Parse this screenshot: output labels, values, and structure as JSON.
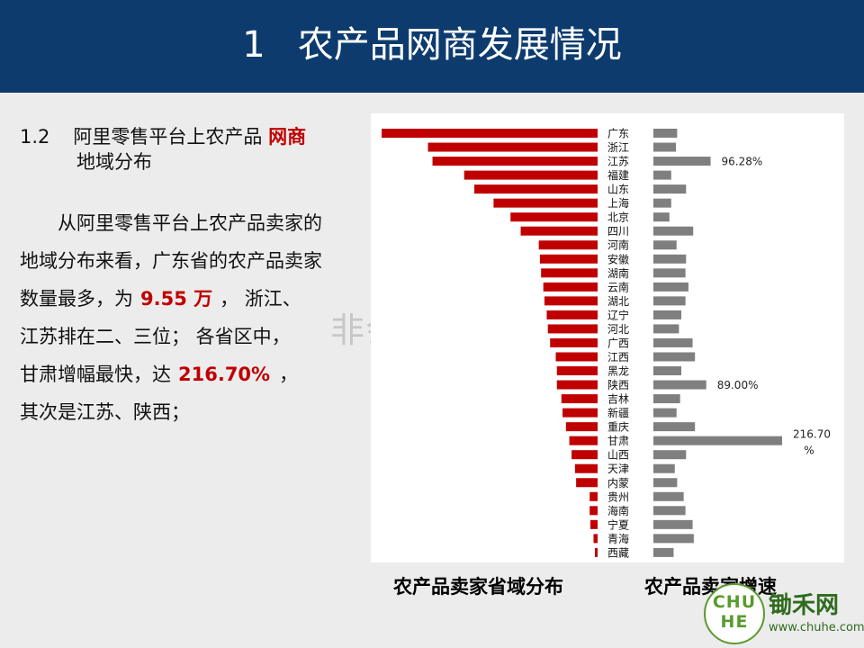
{
  "header": {
    "number": "1",
    "title": "农产品网商发展情况"
  },
  "section": {
    "number": "1.2",
    "title_part1": "阿里零售平台上农产品",
    "title_highlight": "网商",
    "title_line2": "地域分布"
  },
  "body": {
    "line1": "从阿里零售平台上农产品卖家的",
    "line2": "地域分布来看，广东省的农产品卖家",
    "line3_a": "数量最多，为",
    "line3_highlight": "9.55 万",
    "line3_b": "，  浙江、",
    "line4": "江苏排在二、三位；  各省区中，",
    "line5_a": "甘肃增幅最快，达",
    "line5_highlight": "216.70%",
    "line5_b": "，",
    "line6": "其次是江苏、陕西；"
  },
  "watermark": "非会员水印",
  "captions": {
    "left": "农产品卖家省域分布",
    "right": "农产品卖家增速"
  },
  "logo": {
    "badge_line1": "CHU",
    "badge_line2": "HE",
    "name": "锄禾网",
    "url": "www.chuhe.com"
  },
  "colors": {
    "header_bg": "#0d3b6e",
    "seller_bar": "#c00000",
    "growth_bar": "#7f7f7f",
    "accent_text": "#c00000",
    "logo_green": "#2f6b1f"
  },
  "chart_data": {
    "type": "bar",
    "orientation": "horizontal",
    "categories": [
      "广东",
      "浙江",
      "江苏",
      "福建",
      "山东",
      "上海",
      "北京",
      "四川",
      "河南",
      "安徽",
      "湖南",
      "云南",
      "湖北",
      "辽宁",
      "河北",
      "广西",
      "江西",
      "黑龙",
      "陕西",
      "吉林",
      "新疆",
      "重庆",
      "甘肃",
      "山西",
      "天津",
      "内蒙",
      "贵州",
      "海南",
      "宁夏",
      "青海",
      "西藏"
    ],
    "series": [
      {
        "values": [
          9.55,
          7.5,
          7.3,
          5.9,
          5.45,
          4.6,
          3.85,
          3.4,
          2.6,
          2.55,
          2.5,
          2.4,
          2.35,
          2.25,
          2.2,
          2.1,
          1.85,
          1.8,
          1.8,
          1.6,
          1.55,
          1.4,
          1.25,
          1.15,
          1.0,
          0.95,
          0.35,
          0.35,
          0.32,
          0.18,
          0.12
        ],
        "direction": "left"
      },
      {
        "values": [
          40.0,
          38.0,
          96.28,
          30.0,
          55.0,
          30.0,
          27.0,
          67.0,
          39.0,
          55.0,
          54.0,
          59.0,
          54.0,
          47.0,
          43.0,
          66.0,
          70.0,
          47.0,
          89.0,
          45.0,
          39.0,
          70.0,
          216.7,
          55.0,
          36.0,
          40.0,
          51.0,
          54.0,
          66.0,
          68.0,
          34.0
        ],
        "direction": "right"
      }
    ],
    "data_labels": [
      {
        "category": "江苏",
        "text": "96.28%"
      },
      {
        "category": "陕西",
        "text": "89.00%"
      },
      {
        "category": "甘肃",
        "text_line1": "216.70",
        "text_line2": "%"
      }
    ],
    "grid": false,
    "legend": "none"
  }
}
